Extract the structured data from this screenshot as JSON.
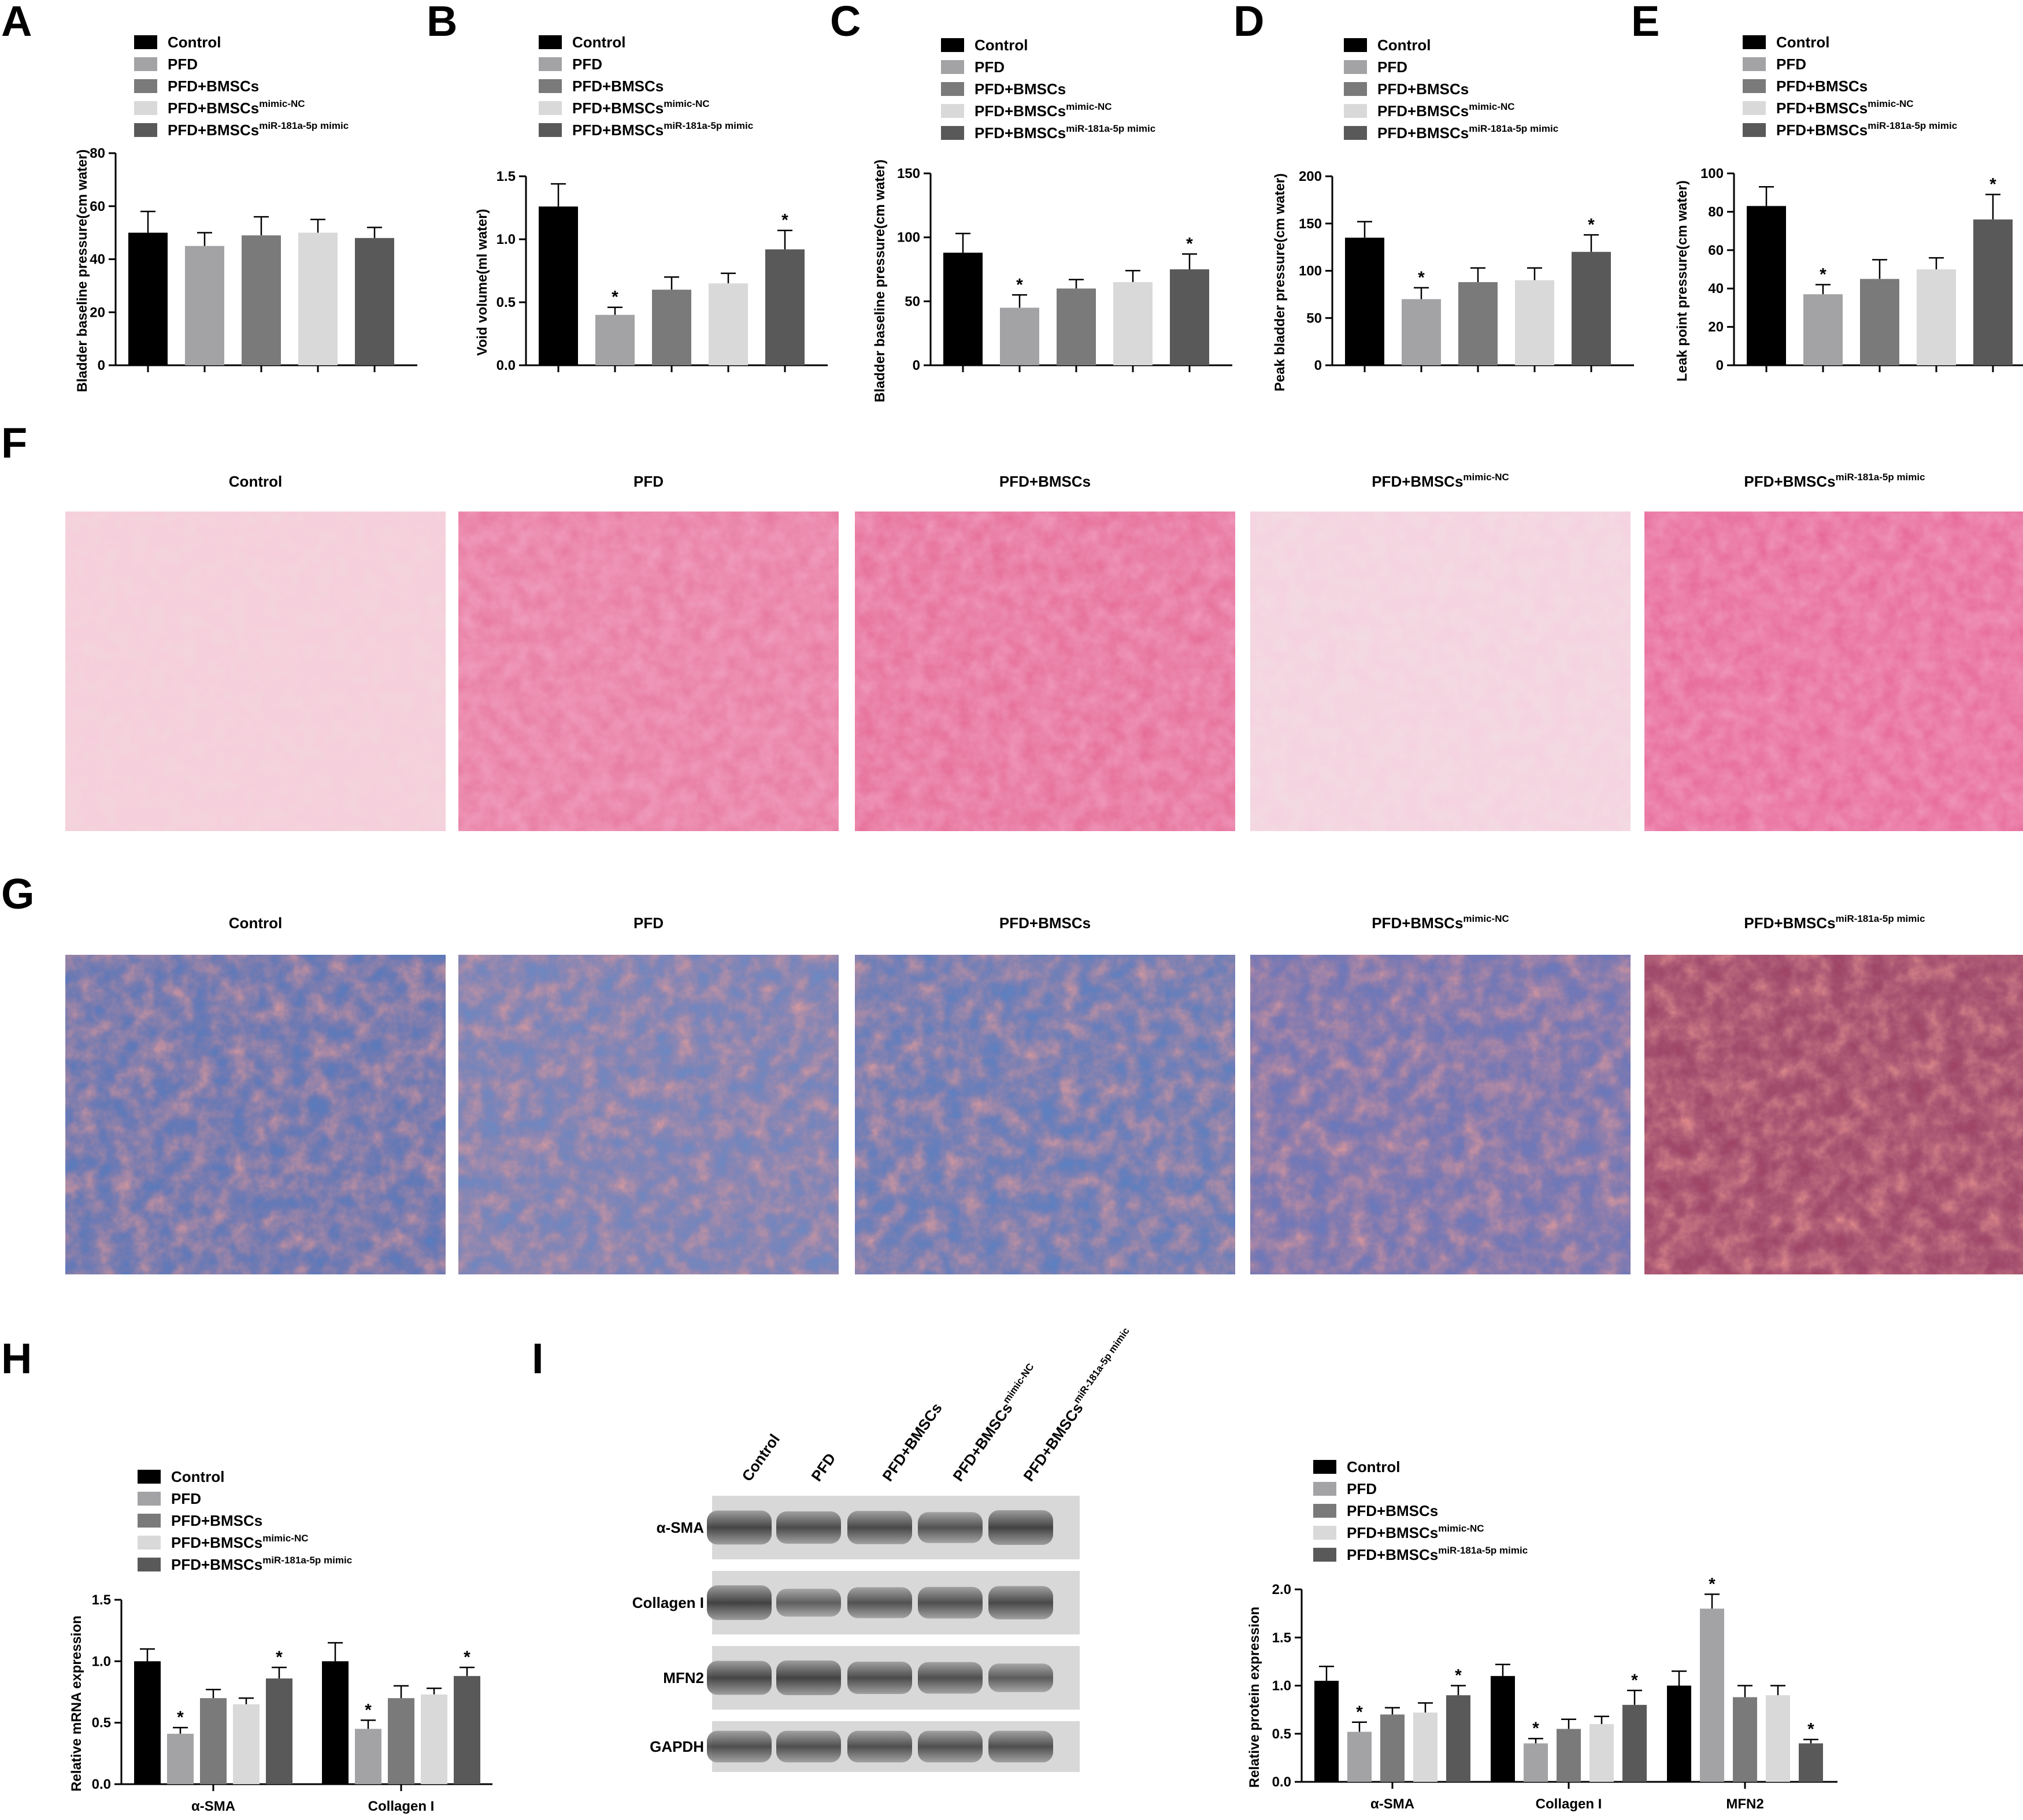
{
  "figure": {
    "panels": {
      "A": "A",
      "B": "B",
      "C": "C",
      "D": "D",
      "E": "E",
      "F": "F",
      "G": "G",
      "H": "H",
      "I": "I"
    }
  },
  "colors": {
    "groups": [
      "#000000",
      "#a3a3a6",
      "#7a7a7a",
      "#d9d9d9",
      "#595959"
    ],
    "he_stain": [
      "#f3d6dc",
      "#e7779e",
      "#e56a95",
      "#f2dde3",
      "#e66596"
    ],
    "masson_stain": [
      "#5a7fc0",
      "#6f8fc8",
      "#5d86c6",
      "#6c7ec0",
      "#a9425e"
    ]
  },
  "legend": [
    {
      "label": "Control",
      "sup": ""
    },
    {
      "label": "PFD",
      "sup": ""
    },
    {
      "label": "PFD+BMSCs",
      "sup": ""
    },
    {
      "label": "PFD+BMSCs",
      "sup": "mimic-NC"
    },
    {
      "label": "PFD+BMSCs",
      "sup": "miR-181a-5p mimic"
    }
  ],
  "histology": {
    "F": [
      {
        "label": "Control",
        "sup": ""
      },
      {
        "label": "PFD",
        "sup": ""
      },
      {
        "label": "PFD+BMSCs",
        "sup": ""
      },
      {
        "label": "PFD+BMSCs",
        "sup": "mimic-NC"
      },
      {
        "label": "PFD+BMSCs",
        "sup": "miR-181a-5p mimic"
      }
    ],
    "G": [
      {
        "label": "Control",
        "sup": ""
      },
      {
        "label": "PFD",
        "sup": ""
      },
      {
        "label": "PFD+BMSCs",
        "sup": ""
      },
      {
        "label": "PFD+BMSCs",
        "sup": "mimic-NC"
      },
      {
        "label": "PFD+BMSCs",
        "sup": "miR-181a-5p mimic"
      }
    ]
  },
  "western": {
    "lanes": [
      {
        "label": "Control",
        "sup": ""
      },
      {
        "label": "PFD",
        "sup": ""
      },
      {
        "label": "PFD+BMSCs",
        "sup": ""
      },
      {
        "label": "PFD+BMSCs",
        "sup": "mimic-NC"
      },
      {
        "label": "PFD+BMSCs",
        "sup": "miR-181a-5p mimic"
      }
    ],
    "bands": [
      "α-SMA",
      "Collagen I",
      "MFN2",
      "GAPDH"
    ]
  },
  "chart_data": [
    {
      "panel": "A",
      "type": "bar",
      "ylabel": "Bladder baseline pressure(cm water)",
      "ylim": [
        0,
        80
      ],
      "yticks": [
        0,
        20,
        40,
        60,
        80
      ],
      "yticklabels": [
        "0",
        "20",
        "40",
        "60",
        "80"
      ],
      "values": [
        50,
        45,
        49,
        50,
        48
      ],
      "errors": [
        8,
        5,
        7,
        5,
        4
      ],
      "significant": [
        false,
        false,
        false,
        false,
        false
      ]
    },
    {
      "panel": "B",
      "type": "bar",
      "ylabel": "Void volume(ml water)",
      "ylim": [
        0,
        1.5
      ],
      "yticks": [
        0,
        0.5,
        1.0,
        1.5
      ],
      "yticklabels": [
        "0.0",
        "0.5",
        "1.0",
        "1.5"
      ],
      "values": [
        1.26,
        0.4,
        0.6,
        0.65,
        0.92
      ],
      "errors": [
        0.18,
        0.06,
        0.1,
        0.08,
        0.15
      ],
      "significant": [
        false,
        true,
        false,
        false,
        true
      ]
    },
    {
      "panel": "C",
      "type": "bar",
      "ylabel": "Bladder baseline pressure(cm water)",
      "ylim": [
        0,
        150
      ],
      "yticks": [
        0,
        50,
        100,
        150
      ],
      "yticklabels": [
        "0",
        "50",
        "100",
        "150"
      ],
      "values": [
        88,
        45,
        60,
        65,
        75
      ],
      "errors": [
        15,
        10,
        7,
        9,
        12
      ],
      "significant": [
        false,
        true,
        false,
        false,
        true
      ]
    },
    {
      "panel": "D",
      "type": "bar",
      "ylabel": "Peak bladder pressure(cm water)",
      "ylim": [
        0,
        200
      ],
      "yticks": [
        0,
        50,
        100,
        150,
        200
      ],
      "yticklabels": [
        "0",
        "50",
        "100",
        "150",
        "200"
      ],
      "values": [
        135,
        70,
        88,
        90,
        120
      ],
      "errors": [
        17,
        12,
        15,
        13,
        18
      ],
      "significant": [
        false,
        true,
        false,
        false,
        true
      ]
    },
    {
      "panel": "E",
      "type": "bar",
      "ylabel": "Leak point pressure(cm water)",
      "ylim": [
        0,
        100
      ],
      "yticks": [
        0,
        20,
        40,
        60,
        80,
        100
      ],
      "yticklabels": [
        "0",
        "20",
        "40",
        "60",
        "80",
        "100"
      ],
      "values": [
        83,
        37,
        45,
        50,
        76
      ],
      "errors": [
        10,
        5,
        10,
        6,
        13
      ],
      "significant": [
        false,
        true,
        false,
        false,
        true
      ]
    },
    {
      "panel": "H",
      "type": "bar",
      "ylabel": "Relative mRNA expression",
      "ylim": [
        0,
        1.5
      ],
      "yticks": [
        0,
        0.5,
        1.0,
        1.5
      ],
      "yticklabels": [
        "0.0",
        "0.5",
        "1.0",
        "1.5"
      ],
      "categories": [
        "α-SMA",
        "Collagen I"
      ],
      "values": [
        [
          1.0,
          0.41,
          0.7,
          0.65,
          0.86
        ],
        [
          1.0,
          0.45,
          0.7,
          0.73,
          0.88
        ]
      ],
      "errors": [
        [
          0.1,
          0.05,
          0.07,
          0.05,
          0.09
        ],
        [
          0.15,
          0.07,
          0.1,
          0.05,
          0.07
        ]
      ],
      "significant": [
        [
          false,
          true,
          false,
          false,
          true
        ],
        [
          false,
          true,
          false,
          false,
          true
        ]
      ]
    },
    {
      "panel": "I",
      "type": "bar",
      "ylabel": "Relative protein expression",
      "ylim": [
        0,
        2.0
      ],
      "yticks": [
        0,
        0.5,
        1.0,
        1.5,
        2.0
      ],
      "yticklabels": [
        "0.0",
        "0.5",
        "1.0",
        "1.5",
        "2.0"
      ],
      "categories": [
        "α-SMA",
        "Collagen I",
        "MFN2"
      ],
      "values": [
        [
          1.05,
          0.52,
          0.7,
          0.72,
          0.9
        ],
        [
          1.1,
          0.4,
          0.55,
          0.6,
          0.8
        ],
        [
          1.0,
          1.8,
          0.88,
          0.9,
          0.4
        ]
      ],
      "errors": [
        [
          0.15,
          0.1,
          0.07,
          0.1,
          0.1
        ],
        [
          0.12,
          0.05,
          0.1,
          0.08,
          0.15
        ],
        [
          0.15,
          0.15,
          0.12,
          0.1,
          0.04
        ]
      ],
      "significant": [
        [
          false,
          true,
          false,
          false,
          true
        ],
        [
          false,
          true,
          false,
          false,
          true
        ],
        [
          false,
          true,
          false,
          false,
          true
        ]
      ]
    }
  ]
}
